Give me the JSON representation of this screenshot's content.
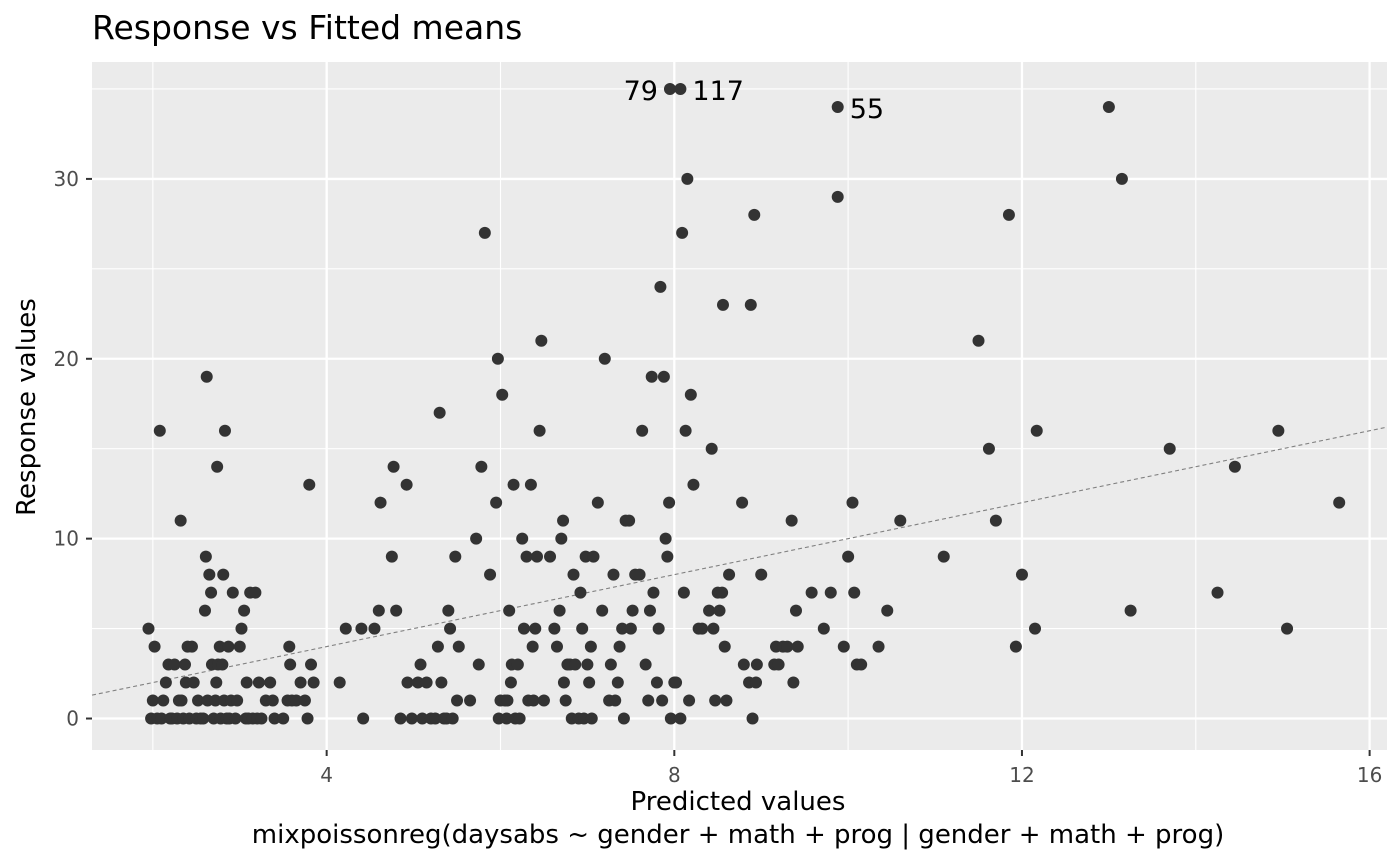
{
  "chart_data": {
    "type": "scatter",
    "title": "Response vs Fitted means",
    "xlabel": "Predicted values",
    "ylabel": "Response values",
    "caption": "mixpoissonreg(daysabs ~ gender + math + prog | gender + math + prog)",
    "xlim": [
      1.3,
      16.2
    ],
    "ylim": [
      -1.75,
      36.5
    ],
    "xticks": [
      4,
      8,
      12,
      16
    ],
    "yticks": [
      0,
      10,
      20,
      30
    ],
    "grid": true,
    "legend": "none",
    "colors": {
      "panel": "#ebebeb",
      "grid": "#ffffff",
      "point": "#333333",
      "tick_text": "#4d4d4d",
      "reference_line": "#808080"
    },
    "reference_line": {
      "style": "dashed",
      "slope": 1,
      "intercept": 0
    },
    "labeled_points": [
      {
        "label": "79",
        "x": 7.95,
        "y": 35
      },
      {
        "label": "117",
        "x": 8.07,
        "y": 35
      },
      {
        "label": "55",
        "x": 9.88,
        "y": 34
      }
    ],
    "points": [
      [
        1.95,
        5
      ],
      [
        1.98,
        0
      ],
      [
        2.0,
        1
      ],
      [
        2.02,
        4
      ],
      [
        2.05,
        0
      ],
      [
        2.08,
        16
      ],
      [
        2.1,
        0
      ],
      [
        2.12,
        1
      ],
      [
        2.15,
        2
      ],
      [
        2.18,
        3
      ],
      [
        2.2,
        0
      ],
      [
        2.22,
        0
      ],
      [
        2.25,
        3
      ],
      [
        2.28,
        0
      ],
      [
        2.3,
        1
      ],
      [
        2.32,
        11
      ],
      [
        2.33,
        1
      ],
      [
        2.35,
        0
      ],
      [
        2.37,
        3
      ],
      [
        2.38,
        2
      ],
      [
        2.4,
        4
      ],
      [
        2.42,
        0
      ],
      [
        2.45,
        4
      ],
      [
        2.47,
        2
      ],
      [
        2.5,
        0
      ],
      [
        2.52,
        1
      ],
      [
        2.55,
        0
      ],
      [
        2.58,
        0
      ],
      [
        2.6,
        6
      ],
      [
        2.61,
        9
      ],
      [
        2.62,
        19
      ],
      [
        2.63,
        1
      ],
      [
        2.65,
        8
      ],
      [
        2.67,
        7
      ],
      [
        2.68,
        3
      ],
      [
        2.7,
        0
      ],
      [
        2.72,
        1
      ],
      [
        2.73,
        2
      ],
      [
        2.74,
        14
      ],
      [
        2.75,
        3
      ],
      [
        2.77,
        4
      ],
      [
        2.78,
        0
      ],
      [
        2.8,
        3
      ],
      [
        2.81,
        8
      ],
      [
        2.82,
        1
      ],
      [
        2.83,
        16
      ],
      [
        2.85,
        0
      ],
      [
        2.87,
        4
      ],
      [
        2.88,
        0
      ],
      [
        2.9,
        1
      ],
      [
        2.92,
        7
      ],
      [
        2.95,
        0
      ],
      [
        2.97,
        1
      ],
      [
        3.0,
        4
      ],
      [
        3.02,
        5
      ],
      [
        3.05,
        6
      ],
      [
        3.07,
        0
      ],
      [
        3.08,
        2
      ],
      [
        3.1,
        0
      ],
      [
        3.12,
        7
      ],
      [
        3.15,
        0
      ],
      [
        3.18,
        7
      ],
      [
        3.2,
        0
      ],
      [
        3.22,
        2
      ],
      [
        3.25,
        0
      ],
      [
        3.3,
        1
      ],
      [
        3.35,
        2
      ],
      [
        3.38,
        1
      ],
      [
        3.4,
        0
      ],
      [
        3.5,
        0
      ],
      [
        3.55,
        1
      ],
      [
        3.57,
        4
      ],
      [
        3.58,
        3
      ],
      [
        3.6,
        1
      ],
      [
        3.65,
        1
      ],
      [
        3.7,
        2
      ],
      [
        3.75,
        1
      ],
      [
        3.78,
        0
      ],
      [
        3.8,
        13
      ],
      [
        3.82,
        3
      ],
      [
        3.85,
        2
      ],
      [
        4.15,
        2
      ],
      [
        4.22,
        5
      ],
      [
        4.4,
        5
      ],
      [
        4.42,
        0
      ],
      [
        4.55,
        5
      ],
      [
        4.6,
        6
      ],
      [
        4.62,
        12
      ],
      [
        4.75,
        9
      ],
      [
        4.77,
        14
      ],
      [
        4.8,
        6
      ],
      [
        4.85,
        0
      ],
      [
        4.92,
        13
      ],
      [
        4.93,
        2
      ],
      [
        4.98,
        0
      ],
      [
        5.05,
        2
      ],
      [
        5.08,
        3
      ],
      [
        5.1,
        0
      ],
      [
        5.15,
        2
      ],
      [
        5.2,
        0
      ],
      [
        5.25,
        0
      ],
      [
        5.28,
        4
      ],
      [
        5.3,
        17
      ],
      [
        5.32,
        2
      ],
      [
        5.35,
        0
      ],
      [
        5.38,
        0
      ],
      [
        5.4,
        6
      ],
      [
        5.42,
        5
      ],
      [
        5.45,
        0
      ],
      [
        5.48,
        9
      ],
      [
        5.5,
        1
      ],
      [
        5.52,
        4
      ],
      [
        5.65,
        1
      ],
      [
        5.72,
        10
      ],
      [
        5.75,
        3
      ],
      [
        5.78,
        14
      ],
      [
        5.82,
        27
      ],
      [
        5.88,
        8
      ],
      [
        5.95,
        12
      ],
      [
        5.97,
        20
      ],
      [
        5.98,
        0
      ],
      [
        6.0,
        1
      ],
      [
        6.02,
        18
      ],
      [
        6.05,
        1
      ],
      [
        6.07,
        0
      ],
      [
        6.08,
        1
      ],
      [
        6.1,
        6
      ],
      [
        6.12,
        2
      ],
      [
        6.13,
        3
      ],
      [
        6.15,
        13
      ],
      [
        6.17,
        0
      ],
      [
        6.2,
        3
      ],
      [
        6.22,
        0
      ],
      [
        6.25,
        10
      ],
      [
        6.27,
        5
      ],
      [
        6.3,
        9
      ],
      [
        6.32,
        1
      ],
      [
        6.35,
        13
      ],
      [
        6.37,
        4
      ],
      [
        6.38,
        1
      ],
      [
        6.4,
        5
      ],
      [
        6.42,
        9
      ],
      [
        6.45,
        16
      ],
      [
        6.47,
        21
      ],
      [
        6.5,
        1
      ],
      [
        6.57,
        9
      ],
      [
        6.62,
        5
      ],
      [
        6.65,
        4
      ],
      [
        6.68,
        6
      ],
      [
        6.7,
        10
      ],
      [
        6.72,
        11
      ],
      [
        6.73,
        2
      ],
      [
        6.75,
        1
      ],
      [
        6.77,
        3
      ],
      [
        6.8,
        3
      ],
      [
        6.82,
        0
      ],
      [
        6.84,
        8
      ],
      [
        6.86,
        3
      ],
      [
        6.9,
        0
      ],
      [
        6.92,
        7
      ],
      [
        6.94,
        5
      ],
      [
        6.96,
        0
      ],
      [
        6.98,
        9
      ],
      [
        7.0,
        3
      ],
      [
        7.02,
        2
      ],
      [
        7.04,
        4
      ],
      [
        7.05,
        0
      ],
      [
        7.07,
        9
      ],
      [
        7.12,
        12
      ],
      [
        7.17,
        6
      ],
      [
        7.2,
        20
      ],
      [
        7.25,
        1
      ],
      [
        7.27,
        3
      ],
      [
        7.3,
        8
      ],
      [
        7.32,
        1
      ],
      [
        7.35,
        2
      ],
      [
        7.37,
        4
      ],
      [
        7.4,
        5
      ],
      [
        7.42,
        0
      ],
      [
        7.44,
        11
      ],
      [
        7.48,
        11
      ],
      [
        7.5,
        5
      ],
      [
        7.52,
        6
      ],
      [
        7.55,
        8
      ],
      [
        7.6,
        8
      ],
      [
        7.63,
        16
      ],
      [
        7.67,
        3
      ],
      [
        7.7,
        1
      ],
      [
        7.72,
        6
      ],
      [
        7.74,
        19
      ],
      [
        7.76,
        7
      ],
      [
        7.8,
        2
      ],
      [
        7.82,
        5
      ],
      [
        7.84,
        24
      ],
      [
        7.86,
        1
      ],
      [
        7.88,
        19
      ],
      [
        7.9,
        10
      ],
      [
        7.92,
        9
      ],
      [
        7.94,
        12
      ],
      [
        7.96,
        0
      ],
      [
        8.0,
        2
      ],
      [
        8.02,
        2
      ],
      [
        8.07,
        0
      ],
      [
        8.09,
        27
      ],
      [
        8.11,
        7
      ],
      [
        8.13,
        16
      ],
      [
        8.15,
        30
      ],
      [
        8.17,
        1
      ],
      [
        8.19,
        18
      ],
      [
        8.22,
        13
      ],
      [
        8.28,
        5
      ],
      [
        8.32,
        5
      ],
      [
        8.4,
        6
      ],
      [
        8.43,
        15
      ],
      [
        8.45,
        5
      ],
      [
        8.47,
        1
      ],
      [
        8.5,
        7
      ],
      [
        8.52,
        6
      ],
      [
        8.55,
        7
      ],
      [
        8.56,
        23
      ],
      [
        8.58,
        4
      ],
      [
        8.6,
        1
      ],
      [
        8.63,
        8
      ],
      [
        8.78,
        12
      ],
      [
        8.8,
        3
      ],
      [
        8.86,
        2
      ],
      [
        8.88,
        23
      ],
      [
        8.9,
        0
      ],
      [
        8.92,
        28
      ],
      [
        8.94,
        2
      ],
      [
        8.95,
        3
      ],
      [
        9.0,
        8
      ],
      [
        9.15,
        3
      ],
      [
        9.17,
        4
      ],
      [
        9.2,
        3
      ],
      [
        9.25,
        4
      ],
      [
        9.3,
        4
      ],
      [
        9.35,
        11
      ],
      [
        9.37,
        2
      ],
      [
        9.4,
        6
      ],
      [
        9.42,
        4
      ],
      [
        9.58,
        7
      ],
      [
        9.72,
        5
      ],
      [
        9.8,
        7
      ],
      [
        9.88,
        29
      ],
      [
        9.95,
        4
      ],
      [
        10.0,
        9
      ],
      [
        10.05,
        12
      ],
      [
        10.07,
        7
      ],
      [
        10.1,
        3
      ],
      [
        10.15,
        3
      ],
      [
        10.35,
        4
      ],
      [
        10.45,
        6
      ],
      [
        10.6,
        11
      ],
      [
        11.1,
        9
      ],
      [
        11.5,
        21
      ],
      [
        11.62,
        15
      ],
      [
        11.7,
        11
      ],
      [
        11.85,
        28
      ],
      [
        11.93,
        4
      ],
      [
        12.0,
        8
      ],
      [
        12.15,
        5
      ],
      [
        12.17,
        16
      ],
      [
        13.0,
        34
      ],
      [
        13.15,
        30
      ],
      [
        13.25,
        6
      ],
      [
        13.7,
        15
      ],
      [
        14.25,
        7
      ],
      [
        14.45,
        14
      ],
      [
        14.95,
        16
      ],
      [
        15.05,
        5
      ],
      [
        15.65,
        12
      ]
    ]
  }
}
